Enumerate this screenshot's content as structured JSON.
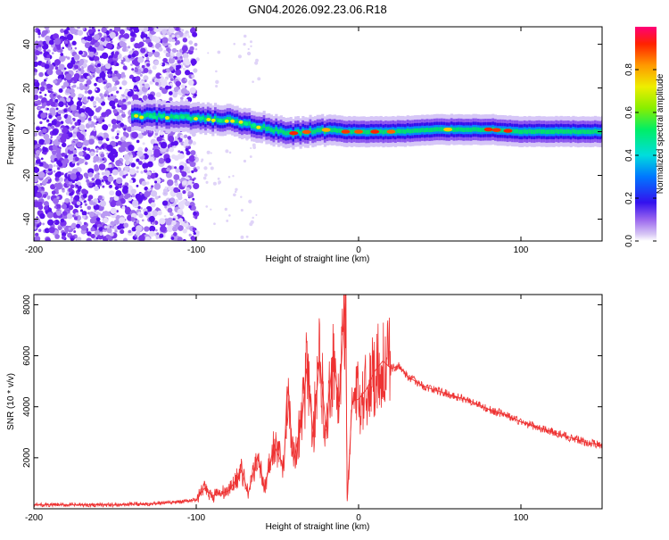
{
  "title": "GN04.2026.092.23.06.R18",
  "chart_data": [
    {
      "type": "heatmap",
      "xlabel": "Height of straight line (km)",
      "ylabel": "Frequency (Hz)",
      "xlim": [
        -200,
        150
      ],
      "ylim": [
        -50,
        48
      ],
      "xticks": [
        -200,
        -100,
        0,
        100
      ],
      "yticks": [
        -40,
        -20,
        0,
        20,
        40
      ],
      "colorbar": {
        "label": "Normalized spectral amplitude",
        "range": [
          0,
          1
        ],
        "ticks": [
          0.0,
          0.2,
          0.4,
          0.6,
          0.8
        ]
      },
      "band_center_hz": [
        {
          "x": -140,
          "y": 7
        },
        {
          "x": -120,
          "y": 7
        },
        {
          "x": -100,
          "y": 6
        },
        {
          "x": -80,
          "y": 5
        },
        {
          "x": -60,
          "y": 2
        },
        {
          "x": -45,
          "y": -1
        },
        {
          "x": -30,
          "y": 0
        },
        {
          "x": -18,
          "y": 1
        },
        {
          "x": -10,
          "y": 0
        },
        {
          "x": 0,
          "y": 0
        },
        {
          "x": 20,
          "y": 0
        },
        {
          "x": 50,
          "y": 1
        },
        {
          "x": 80,
          "y": 1
        },
        {
          "x": 100,
          "y": 0
        },
        {
          "x": 150,
          "y": 0
        }
      ]
    },
    {
      "type": "line",
      "xlabel": "Height of straight line (km)",
      "ylabel": "SNR (10 * v/v)",
      "xlim": [
        -200,
        150
      ],
      "ylim": [
        0,
        8400
      ],
      "xticks": [
        -200,
        -100,
        0,
        100
      ],
      "yticks": [
        2000,
        4000,
        6000,
        8000
      ],
      "series": [
        {
          "name": "SNR",
          "color": "#ee3333",
          "points": [
            [
              -200,
              150
            ],
            [
              -150,
              150
            ],
            [
              -130,
              200
            ],
            [
              -110,
              260
            ],
            [
              -100,
              350
            ],
            [
              -95,
              800
            ],
            [
              -90,
              500
            ],
            [
              -80,
              700
            ],
            [
              -72,
              1500
            ],
            [
              -68,
              600
            ],
            [
              -62,
              2100
            ],
            [
              -58,
              800
            ],
            [
              -52,
              2500
            ],
            [
              -46,
              1600
            ],
            [
              -44,
              4800
            ],
            [
              -40,
              1900
            ],
            [
              -35,
              3400
            ],
            [
              -32,
              5500
            ],
            [
              -28,
              3000
            ],
            [
              -24,
              5800
            ],
            [
              -20,
              3200
            ],
            [
              -16,
              5900
            ],
            [
              -12,
              4200
            ],
            [
              -8,
              8400
            ],
            [
              -7,
              300
            ],
            [
              -4,
              4200
            ],
            [
              0,
              4300
            ],
            [
              5,
              4700
            ],
            [
              10,
              5400
            ],
            [
              15,
              5800
            ],
            [
              20,
              5500
            ],
            [
              25,
              5600
            ],
            [
              30,
              5200
            ],
            [
              40,
              4800
            ],
            [
              50,
              4600
            ],
            [
              60,
              4400
            ],
            [
              70,
              4200
            ],
            [
              80,
              3900
            ],
            [
              90,
              3700
            ],
            [
              100,
              3400
            ],
            [
              110,
              3200
            ],
            [
              120,
              3000
            ],
            [
              130,
              2800
            ],
            [
              140,
              2600
            ],
            [
              150,
              2500
            ]
          ]
        }
      ]
    }
  ]
}
